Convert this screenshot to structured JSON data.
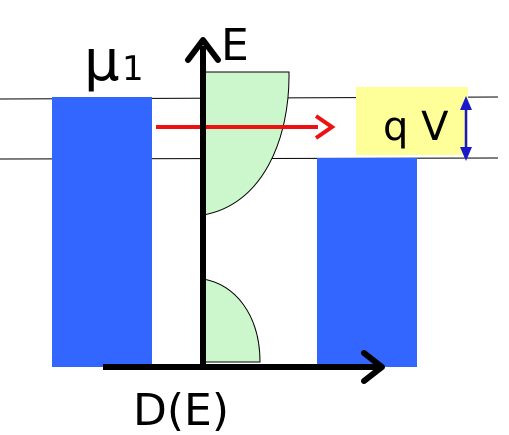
{
  "labels": {
    "mu": "μ",
    "mu_subscript": "1",
    "energy_axis": "E",
    "dos_axis": "D(E)",
    "bias": "q V"
  },
  "colors": {
    "electrode": "#3366ff",
    "dos_fill": "#ccf7cc",
    "bias_box": "#ffff99",
    "transfer_arrow": "#ee1111",
    "bias_arrow": "#1a1acc",
    "axis": "#000000"
  },
  "icons": {
    "transfer_arrow": "right-arrow-icon",
    "bias_arrow": "double-vertical-arrow-icon"
  }
}
